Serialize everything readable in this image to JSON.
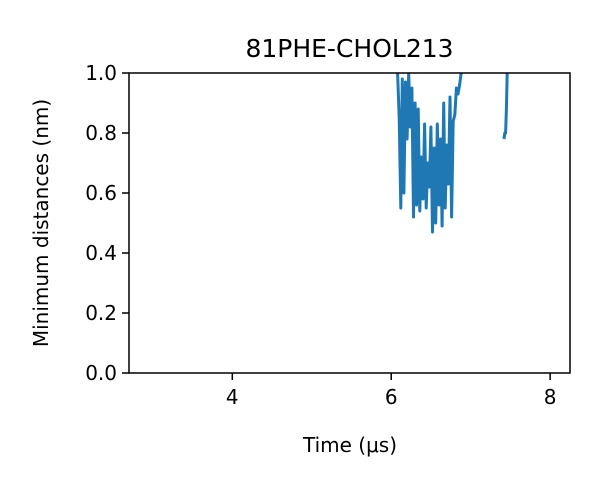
{
  "chart_data": {
    "type": "line",
    "title": "81PHE-CHOL213",
    "xlabel": "Time (μs)",
    "ylabel": "Minimum distances (nm)",
    "xlim": [
      2.7,
      8.25
    ],
    "ylim": [
      0.0,
      1.0
    ],
    "xticks": [
      4,
      6,
      8
    ],
    "xtick_labels": [
      "4",
      "6",
      "8"
    ],
    "yticks": [
      0.0,
      0.2,
      0.4,
      0.6,
      0.8,
      1.0
    ],
    "ytick_labels": [
      "0.0",
      "0.2",
      "0.4",
      "0.6",
      "0.8",
      "1.0"
    ],
    "grid": false,
    "series": [
      {
        "color": "#1f77b4",
        "segments": [
          {
            "x": [
              6.08,
              6.1,
              6.12,
              6.14,
              6.16,
              6.18,
              6.2,
              6.22,
              6.24,
              6.26,
              6.28,
              6.3,
              6.32,
              6.34,
              6.36,
              6.38,
              6.4,
              6.42,
              6.44,
              6.46,
              6.48,
              6.5,
              6.52,
              6.54,
              6.56,
              6.58,
              6.6,
              6.62,
              6.64,
              6.66,
              6.68,
              6.7,
              6.72,
              6.74,
              6.76,
              6.78,
              6.8,
              6.82,
              6.84,
              6.86,
              6.88,
              6.9
            ],
            "y": [
              1.0,
              0.85,
              0.55,
              0.98,
              0.6,
              0.97,
              0.78,
              1.0,
              0.82,
              0.95,
              0.52,
              0.9,
              0.56,
              0.88,
              0.54,
              0.72,
              0.58,
              0.83,
              0.55,
              0.7,
              0.62,
              0.82,
              0.47,
              0.75,
              0.5,
              0.83,
              0.56,
              0.78,
              0.49,
              0.9,
              0.55,
              0.76,
              0.63,
              0.92,
              0.52,
              0.84,
              0.86,
              0.95,
              0.93,
              0.96,
              1.0,
              1.0
            ]
          },
          {
            "x": [
              7.42,
              7.43,
              7.44,
              7.45,
              7.46,
              7.47
            ],
            "y": [
              0.78,
              0.8,
              0.8,
              0.88,
              1.0,
              1.0
            ]
          }
        ]
      }
    ]
  }
}
